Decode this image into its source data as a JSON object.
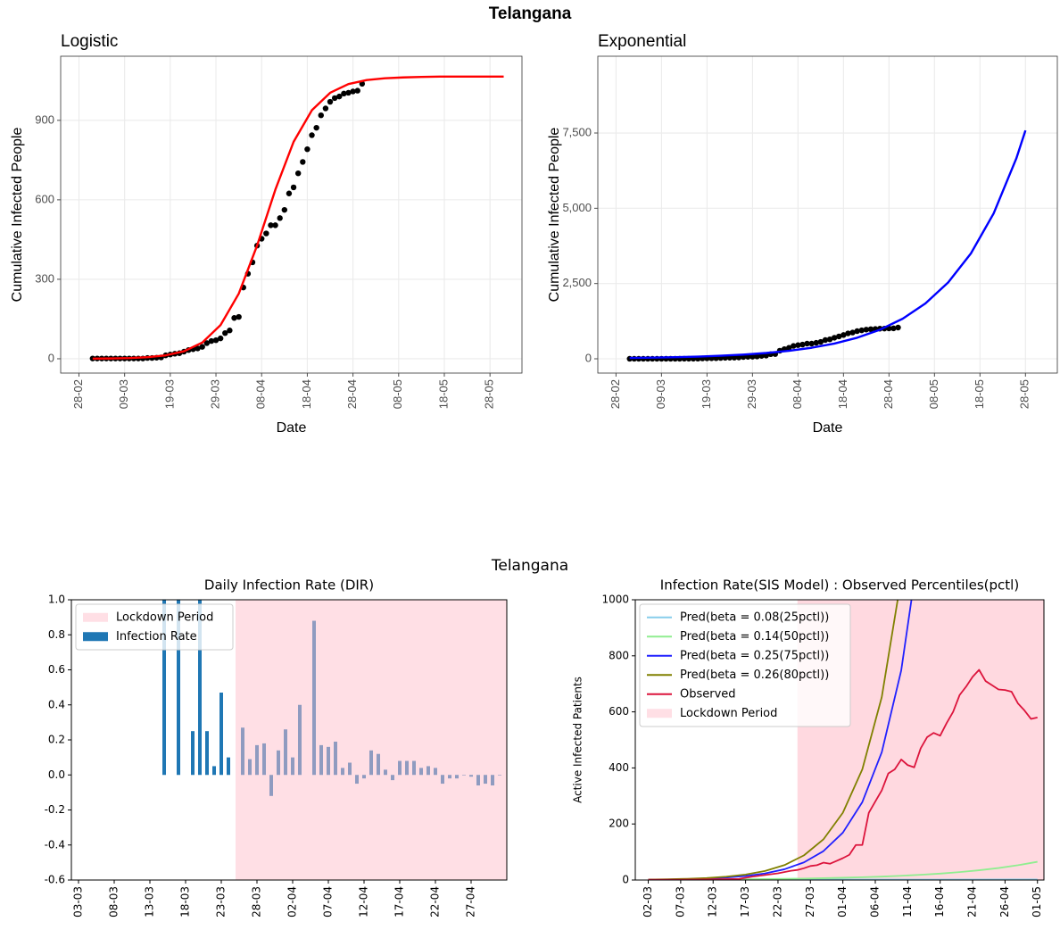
{
  "figures": [
    {
      "title": "Telangana"
    },
    {
      "title": "Telangana"
    }
  ],
  "chart_data": [
    {
      "type": "line",
      "title": "Logistic",
      "x_label": "Date",
      "y_label": "Cumulative Infected People",
      "xlim": [
        "24-02",
        "04-06"
      ],
      "xticks": [
        "28-02",
        "09-03",
        "19-03",
        "29-03",
        "08-04",
        "18-04",
        "28-04",
        "08-05",
        "18-05",
        "28-05"
      ],
      "ylim": [
        -54,
        1142
      ],
      "yticks": [
        0,
        300,
        600,
        900
      ],
      "grid": true,
      "series": [
        {
          "mark": "point",
          "color": "#000000",
          "x": [
            "02-03",
            "03-03",
            "04-03",
            "05-03",
            "06-03",
            "07-03",
            "08-03",
            "09-03",
            "10-03",
            "11-03",
            "12-03",
            "13-03",
            "14-03",
            "15-03",
            "16-03",
            "17-03",
            "18-03",
            "19-03",
            "20-03",
            "21-03",
            "22-03",
            "23-03",
            "24-03",
            "25-03",
            "26-03",
            "27-03",
            "28-03",
            "29-03",
            "30-03",
            "31-03",
            "01-04",
            "02-04",
            "03-04",
            "04-04",
            "05-04",
            "06-04",
            "07-04",
            "08-04",
            "09-04",
            "10-04",
            "11-04",
            "12-04",
            "13-04",
            "14-04",
            "15-04",
            "16-04",
            "17-04",
            "18-04",
            "19-04",
            "20-04",
            "21-04",
            "22-04",
            "23-04",
            "24-04",
            "25-04",
            "26-04",
            "27-04",
            "28-04",
            "29-04",
            "30-04"
          ],
          "values": [
            1,
            1,
            1,
            1,
            1,
            1,
            1,
            1,
            1,
            1,
            1,
            1,
            3,
            3,
            4,
            5,
            13,
            16,
            19,
            21,
            27,
            33,
            36,
            39,
            45,
            59,
            67,
            70,
            77,
            97,
            107,
            154,
            158,
            269,
            321,
            364,
            427,
            453,
            473,
            504,
            504,
            531,
            562,
            624,
            647,
            700,
            743,
            791,
            844,
            872,
            919,
            945,
            970,
            984,
            990,
            1001,
            1004,
            1009,
            1012,
            1038
          ]
        },
        {
          "mark": "line",
          "color": "#ff0000",
          "x": [
            "02-03",
            "06-03",
            "10-03",
            "14-03",
            "18-03",
            "22-03",
            "26-03",
            "30-03",
            "03-04",
            "07-04",
            "11-04",
            "15-04",
            "19-04",
            "23-04",
            "27-04",
            "01-05",
            "05-05",
            "09-05",
            "13-05",
            "17-05",
            "21-05",
            "25-05",
            "29-05",
            "31-05"
          ],
          "values": [
            0.5,
            1.2,
            2.6,
            5.9,
            12.9,
            28.3,
            61.1,
            127,
            246,
            427,
            638,
            819,
            938,
            1004,
            1037,
            1052,
            1059,
            1062,
            1064,
            1065,
            1065,
            1065,
            1065,
            1065
          ]
        }
      ]
    },
    {
      "type": "line",
      "title": "Exponential",
      "x_label": "Date",
      "y_label": "Cumulative Infected People",
      "xlim": [
        "24-02",
        "04-06"
      ],
      "xticks": [
        "28-02",
        "09-03",
        "19-03",
        "29-03",
        "08-04",
        "18-04",
        "28-04",
        "08-05",
        "18-05",
        "28-05"
      ],
      "ylim": [
        -474,
        10050
      ],
      "yticks": [
        0,
        {
          "value": 2500,
          "label": "2,500"
        },
        {
          "value": 5000,
          "label": "5,000"
        },
        {
          "value": 7500,
          "label": "7,500"
        }
      ],
      "grid": true,
      "series": [
        {
          "mark": "point",
          "color": "#000000",
          "x": [
            "02-03",
            "03-03",
            "04-03",
            "05-03",
            "06-03",
            "07-03",
            "08-03",
            "09-03",
            "10-03",
            "11-03",
            "12-03",
            "13-03",
            "14-03",
            "15-03",
            "16-03",
            "17-03",
            "18-03",
            "19-03",
            "20-03",
            "21-03",
            "22-03",
            "23-03",
            "24-03",
            "25-03",
            "26-03",
            "27-03",
            "28-03",
            "29-03",
            "30-03",
            "31-03",
            "01-04",
            "02-04",
            "03-04",
            "04-04",
            "05-04",
            "06-04",
            "07-04",
            "08-04",
            "09-04",
            "10-04",
            "11-04",
            "12-04",
            "13-04",
            "14-04",
            "15-04",
            "16-04",
            "17-04",
            "18-04",
            "19-04",
            "20-04",
            "21-04",
            "22-04",
            "23-04",
            "24-04",
            "25-04",
            "26-04",
            "27-04",
            "28-04",
            "29-04",
            "30-04"
          ],
          "values": [
            1,
            1,
            1,
            1,
            1,
            1,
            1,
            1,
            1,
            1,
            1,
            1,
            3,
            3,
            4,
            5,
            13,
            16,
            19,
            21,
            27,
            33,
            36,
            39,
            45,
            59,
            67,
            70,
            77,
            97,
            107,
            154,
            158,
            269,
            321,
            364,
            427,
            453,
            473,
            504,
            504,
            531,
            562,
            624,
            647,
            700,
            743,
            791,
            844,
            872,
            919,
            945,
            970,
            984,
            990,
            1001,
            1004,
            1009,
            1012,
            1038
          ]
        },
        {
          "mark": "line",
          "color": "#0000ff",
          "x": [
            "02-03",
            "07-03",
            "12-03",
            "17-03",
            "22-03",
            "27-03",
            "01-04",
            "06-04",
            "11-04",
            "16-04",
            "21-04",
            "26-04",
            "01-05",
            "06-05",
            "11-05",
            "16-05",
            "21-05",
            "26-05",
            "28-05"
          ],
          "values": [
            28,
            38.6,
            53,
            73,
            101,
            140,
            193,
            266,
            367,
            507,
            699,
            965,
            1331,
            1837,
            2535,
            3498,
            4827,
            6661,
            7586
          ]
        }
      ]
    },
    {
      "type": "bar",
      "title": "Daily Infection Rate (DIR)",
      "xlim": [
        "02-03",
        "02-05"
      ],
      "xticks": [
        "03-03",
        "08-03",
        "13-03",
        "18-03",
        "23-03",
        "28-03",
        "02-04",
        "07-04",
        "12-04",
        "17-04",
        "22-04",
        "27-04"
      ],
      "ylim": [
        -0.6,
        1.0
      ],
      "yticks": [
        -0.6,
        -0.4,
        -0.2,
        {
          "value": 0,
          "label": "0.0"
        },
        0.2,
        0.4,
        0.6,
        0.8,
        {
          "value": 1.0,
          "label": "1.0"
        }
      ],
      "legend": "upper left",
      "lockdown": {
        "name": "Lockdown Period",
        "start": "25-03",
        "color": "#ffc0cb"
      },
      "series": [
        {
          "name": "Infection Rate",
          "color": "#1f77b4",
          "x": [
            "15-03",
            "17-03",
            "19-03",
            "20-03",
            "21-03",
            "22-03",
            "23-03",
            "24-03",
            "26-03",
            "27-03",
            "28-03",
            "29-03",
            "30-03",
            "31-03",
            "01-04",
            "02-04",
            "03-04",
            "05-04",
            "06-04",
            "07-04",
            "08-04",
            "09-04",
            "10-04",
            "11-04",
            "12-04",
            "13-04",
            "14-04",
            "15-04",
            "16-04",
            "17-04",
            "18-04",
            "19-04",
            "20-04",
            "21-04",
            "22-04",
            "23-04",
            "24-04",
            "25-04",
            "26-04",
            "27-04",
            "28-04",
            "29-04",
            "30-04",
            "01-05"
          ],
          "values": [
            1.0,
            1.0,
            0.25,
            1.0,
            0.25,
            0.05,
            0.47,
            0.1,
            0.27,
            0.09,
            0.17,
            0.18,
            -0.12,
            0.14,
            0.26,
            0.1,
            0.4,
            0.88,
            0.17,
            0.16,
            0.19,
            0.04,
            0.07,
            -0.05,
            -0.02,
            0.14,
            0.12,
            0.03,
            -0.03,
            0.08,
            0.08,
            0.08,
            0.04,
            0.05,
            0.04,
            -0.05,
            -0.02,
            -0.02,
            0.0,
            -0.01,
            -0.06,
            -0.05,
            -0.06,
            0.0
          ]
        }
      ]
    },
    {
      "type": "line",
      "title": "Infection Rate(SIS Model) : Observed Percentiles(pctl)",
      "y_label": "Active Infected Patients",
      "xlim": [
        "29-02",
        "02-05"
      ],
      "xticks": [
        "02-03",
        "07-03",
        "12-03",
        "17-03",
        "22-03",
        "27-03",
        "01-04",
        "06-04",
        "11-04",
        "16-04",
        "21-04",
        "26-04",
        "01-05"
      ],
      "ylim": [
        0,
        1000
      ],
      "yticks": [
        0,
        200,
        400,
        600,
        800,
        1000
      ],
      "legend": "upper left",
      "lockdown": {
        "name": "Lockdown Period",
        "start": "25-03",
        "color": "#ffc0cb"
      },
      "series": [
        {
          "name": "Pred(beta = 0.08(25pctl))",
          "color": "#87ceeb",
          "x": [
            "02-03",
            "17-03",
            "01-04",
            "16-04",
            "01-05"
          ],
          "values": [
            1.0,
            1.16,
            1.35,
            1.57,
            1.82
          ]
        },
        {
          "name": "Pred(beta = 0.14(50pctl))",
          "color": "#90ee90",
          "x": [
            "02-03",
            "05-03",
            "08-03",
            "11-03",
            "14-03",
            "17-03",
            "20-03",
            "23-03",
            "26-03",
            "29-03",
            "01-04",
            "04-04",
            "07-04",
            "10-04",
            "13-04",
            "16-04",
            "19-04",
            "22-04",
            "25-04",
            "28-04",
            "01-05"
          ],
          "values": [
            1.0,
            1.23,
            1.52,
            1.87,
            2.3,
            2.84,
            3.5,
            4.3,
            5.3,
            6.5,
            8.1,
            9.9,
            12.2,
            15.1,
            18.6,
            22.9,
            28.2,
            34.8,
            42.8,
            52.8,
            65.1
          ]
        },
        {
          "name": "Pred(beta = 0.25(75pctl))",
          "color": "#2020ff",
          "x": [
            "02-03",
            "05-03",
            "08-03",
            "11-03",
            "14-03",
            "17-03",
            "20-03",
            "23-03",
            "26-03",
            "29-03",
            "01-04",
            "04-04",
            "07-04",
            "10-04",
            "13-04"
          ],
          "values": [
            1.2,
            2.0,
            3.2,
            5.3,
            8.7,
            14.3,
            23.4,
            38.4,
            63,
            103,
            169,
            278,
            456,
            748,
            1227
          ]
        },
        {
          "name": "Pred(beta = 0.26(80pctl))",
          "color": "#808000",
          "x": [
            "02-03",
            "05-03",
            "08-03",
            "11-03",
            "14-03",
            "17-03",
            "20-03",
            "23-03",
            "26-03",
            "29-03",
            "01-04",
            "04-04",
            "07-04",
            "10-04",
            "13-04"
          ],
          "values": [
            1.6,
            2.6,
            4.4,
            7.2,
            11.9,
            19.6,
            32.3,
            53.3,
            88,
            145,
            240,
            395,
            653,
            1077,
            1776
          ]
        },
        {
          "name": "Observed",
          "color": "#dc143c",
          "x": [
            "02-03",
            "06-03",
            "10-03",
            "14-03",
            "16-03",
            "18-03",
            "20-03",
            "22-03",
            "24-03",
            "25-03",
            "26-03",
            "27-03",
            "28-03",
            "29-03",
            "30-03",
            "31-03",
            "01-04",
            "02-04",
            "03-04",
            "04-04",
            "05-04",
            "06-04",
            "07-04",
            "08-04",
            "09-04",
            "10-04",
            "11-04",
            "12-04",
            "13-04",
            "14-04",
            "15-04",
            "16-04",
            "17-04",
            "18-04",
            "19-04",
            "20-04",
            "21-04",
            "22-04",
            "23-04",
            "24-04",
            "25-04",
            "26-04",
            "27-04",
            "28-04",
            "29-04",
            "30-04",
            "01-05"
          ],
          "values": [
            1,
            1,
            2,
            3,
            4,
            12,
            18,
            24,
            33,
            36,
            42,
            50,
            53,
            62,
            58,
            68,
            78,
            90,
            125,
            125,
            240,
            280,
            320,
            380,
            395,
            430,
            410,
            402,
            470,
            510,
            525,
            515,
            560,
            600,
            660,
            690,
            725,
            750,
            710,
            695,
            680,
            678,
            672,
            630,
            605,
            575,
            580
          ]
        }
      ]
    }
  ]
}
